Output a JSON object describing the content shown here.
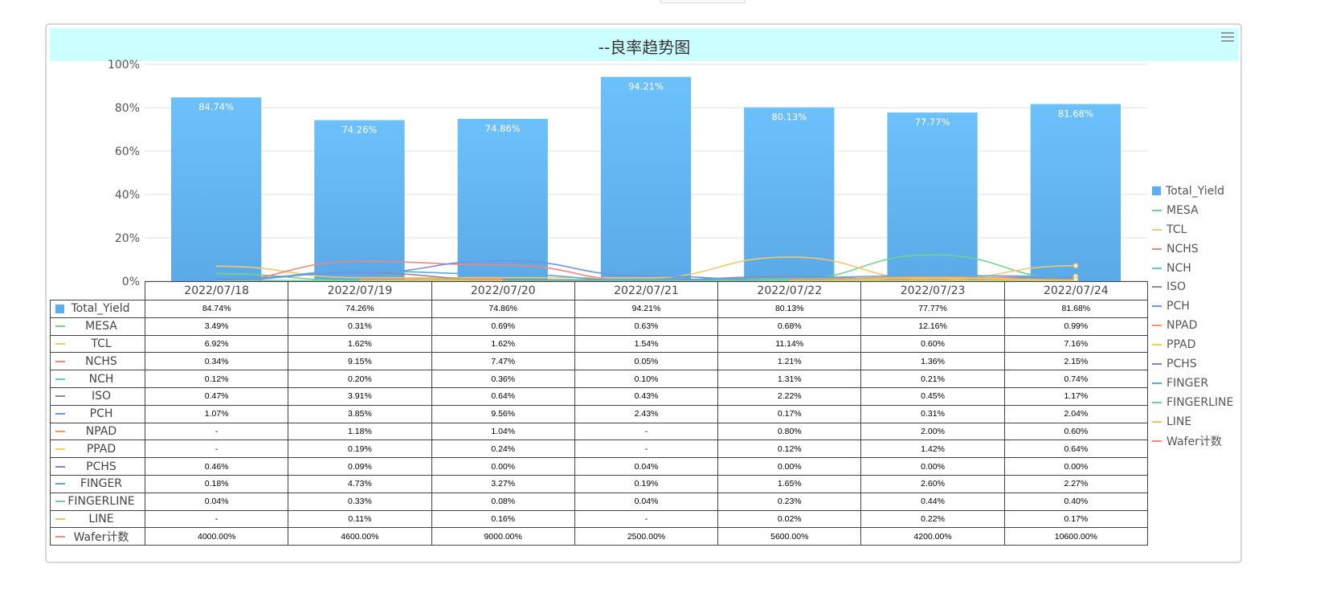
{
  "chart_data": {
    "type": "bar",
    "title": "--良率趋势图",
    "categories": [
      "2022/07/18",
      "2022/07/19",
      "2022/07/20",
      "2022/07/21",
      "2022/07/22",
      "2022/07/23",
      "2022/07/24"
    ],
    "ylim": [
      0,
      100
    ],
    "yticks": [
      "0%",
      "20%",
      "40%",
      "60%",
      "80%",
      "100%"
    ],
    "grid": true,
    "legend_position": "right",
    "bar_series": {
      "name": "Total_Yield",
      "color": "#5aaff0",
      "values": [
        84.74,
        74.26,
        74.86,
        94.21,
        80.13,
        77.77,
        81.68
      ],
      "labels": [
        "84.74%",
        "74.26%",
        "74.86%",
        "94.21%",
        "80.13%",
        "77.77%",
        "81.68%"
      ]
    },
    "line_series": [
      {
        "name": "MESA",
        "color": "#70d48a",
        "values": [
          3.49,
          0.31,
          0.69,
          0.63,
          0.68,
          12.16,
          0.99
        ]
      },
      {
        "name": "TCL",
        "color": "#f5c76b",
        "values": [
          6.92,
          1.62,
          1.62,
          1.54,
          11.14,
          0.6,
          7.16
        ]
      },
      {
        "name": "NCHS",
        "color": "#f5857a",
        "values": [
          0.34,
          9.15,
          7.47,
          0.05,
          1.21,
          1.36,
          2.15
        ]
      },
      {
        "name": "NCH",
        "color": "#58d6b6",
        "values": [
          0.12,
          0.2,
          0.36,
          0.1,
          1.31,
          0.21,
          0.74
        ]
      },
      {
        "name": "ISO",
        "color": "#8c8c9e",
        "values": [
          0.47,
          3.91,
          0.64,
          0.43,
          2.22,
          0.45,
          1.17
        ]
      },
      {
        "name": "PCH",
        "color": "#6f95e6",
        "values": [
          1.07,
          3.85,
          9.56,
          2.43,
          0.17,
          0.31,
          2.04
        ]
      },
      {
        "name": "NPAD",
        "color": "#f79a5e",
        "values": [
          null,
          1.18,
          1.04,
          null,
          0.8,
          2.0,
          0.6
        ]
      },
      {
        "name": "PPAD",
        "color": "#f2d05a",
        "values": [
          null,
          0.19,
          0.24,
          null,
          0.12,
          1.42,
          0.64
        ]
      },
      {
        "name": "PCHS",
        "color": "#8e7fd1",
        "values": [
          0.46,
          0.09,
          0.0,
          0.04,
          0.0,
          0.0,
          0.0
        ]
      },
      {
        "name": "FINGER",
        "color": "#5ba9e8",
        "values": [
          0.18,
          4.73,
          3.27,
          0.19,
          1.65,
          2.6,
          2.27
        ]
      },
      {
        "name": "FINGERLINE",
        "color": "#6fd39a",
        "values": [
          0.04,
          0.33,
          0.08,
          0.04,
          0.23,
          0.44,
          0.4
        ]
      },
      {
        "name": "LINE",
        "color": "#f5c25e",
        "values": [
          null,
          0.11,
          0.16,
          null,
          0.02,
          0.22,
          0.17
        ]
      },
      {
        "name": "Wafer计数",
        "color": "#f58a80",
        "values": [
          4000,
          4600,
          9000,
          2500,
          5600,
          4200,
          10600
        ]
      }
    ]
  },
  "table": {
    "rows": [
      {
        "name": "Total_Yield",
        "color": "#5aaff0",
        "symbol": "rect",
        "cells": [
          "84.74%",
          "74.26%",
          "74.86%",
          "94.21%",
          "80.13%",
          "77.77%",
          "81.68%"
        ]
      },
      {
        "name": "MESA",
        "color": "#70d48a",
        "symbol": "line",
        "cells": [
          "3.49%",
          "0.31%",
          "0.69%",
          "0.63%",
          "0.68%",
          "12.16%",
          "0.99%"
        ]
      },
      {
        "name": "TCL",
        "color": "#f5c76b",
        "symbol": "line",
        "cells": [
          "6.92%",
          "1.62%",
          "1.62%",
          "1.54%",
          "11.14%",
          "0.60%",
          "7.16%"
        ]
      },
      {
        "name": "NCHS",
        "color": "#f5857a",
        "symbol": "line",
        "cells": [
          "0.34%",
          "9.15%",
          "7.47%",
          "0.05%",
          "1.21%",
          "1.36%",
          "2.15%"
        ]
      },
      {
        "name": "NCH",
        "color": "#58d6b6",
        "symbol": "line",
        "cells": [
          "0.12%",
          "0.20%",
          "0.36%",
          "0.10%",
          "1.31%",
          "0.21%",
          "0.74%"
        ]
      },
      {
        "name": "ISO",
        "color": "#8c8c9e",
        "symbol": "line",
        "cells": [
          "0.47%",
          "3.91%",
          "0.64%",
          "0.43%",
          "2.22%",
          "0.45%",
          "1.17%"
        ]
      },
      {
        "name": "PCH",
        "color": "#6f95e6",
        "symbol": "line",
        "cells": [
          "1.07%",
          "3.85%",
          "9.56%",
          "2.43%",
          "0.17%",
          "0.31%",
          "2.04%"
        ]
      },
      {
        "name": "NPAD",
        "color": "#f79a5e",
        "symbol": "line",
        "cells": [
          "-",
          "1.18%",
          "1.04%",
          "-",
          "0.80%",
          "2.00%",
          "0.60%"
        ]
      },
      {
        "name": "PPAD",
        "color": "#f2d05a",
        "symbol": "line",
        "cells": [
          "-",
          "0.19%",
          "0.24%",
          "-",
          "0.12%",
          "1.42%",
          "0.64%"
        ]
      },
      {
        "name": "PCHS",
        "color": "#8e7fd1",
        "symbol": "line",
        "cells": [
          "0.46%",
          "0.09%",
          "0.00%",
          "0.04%",
          "0.00%",
          "0.00%",
          "0.00%"
        ]
      },
      {
        "name": "FINGER",
        "color": "#5ba9e8",
        "symbol": "line",
        "cells": [
          "0.18%",
          "4.73%",
          "3.27%",
          "0.19%",
          "1.65%",
          "2.60%",
          "2.27%"
        ]
      },
      {
        "name": "FINGERLINE",
        "color": "#6fd39a",
        "symbol": "line",
        "cells": [
          "0.04%",
          "0.33%",
          "0.08%",
          "0.04%",
          "0.23%",
          "0.44%",
          "0.40%"
        ]
      },
      {
        "name": "LINE",
        "color": "#f5c25e",
        "symbol": "line",
        "cells": [
          "-",
          "0.11%",
          "0.16%",
          "-",
          "0.02%",
          "0.22%",
          "0.17%"
        ]
      },
      {
        "name": "Wafer计数",
        "color": "#f58a80",
        "symbol": "line",
        "cells": [
          "4000.00%",
          "4600.00%",
          "9000.00%",
          "2500.00%",
          "5600.00%",
          "4200.00%",
          "10600.00%"
        ]
      }
    ]
  },
  "menu_icon": "hamburger-menu-icon"
}
